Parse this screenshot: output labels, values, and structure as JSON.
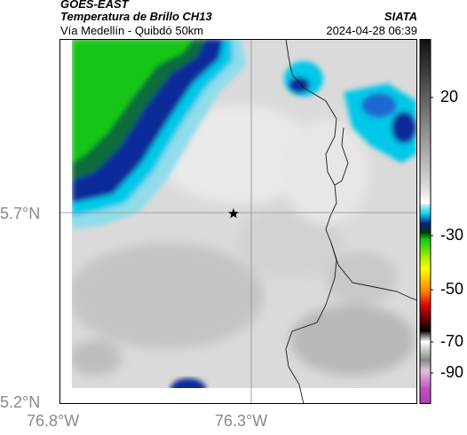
{
  "header": {
    "satellite": "GOES-EAST",
    "product": "Temperatura de Brillo CH13",
    "route": "Vía Medellín - Quibdó 50km",
    "organization": "SIATA",
    "timestamp": "2024-04-28 06:39"
  },
  "map": {
    "lat_ticks": [
      "5.7°N",
      "5.2°N"
    ],
    "lon_ticks": [
      "76.8°W",
      "76.3°W"
    ],
    "marker_icon": "star-icon",
    "grid": true
  },
  "colorbar": {
    "ticks": [
      "20",
      "-30",
      "-50",
      "-70",
      "-90"
    ],
    "colors": {
      "warm_gray_top": "#101010",
      "gray_mid": "#c8c8c8",
      "cyan": "#00d0ea",
      "blue": "#0a1e8c",
      "green": "#10cc10",
      "yellow": "#ffff00",
      "red": "#e00000",
      "magenta": "#c050c0"
    }
  }
}
